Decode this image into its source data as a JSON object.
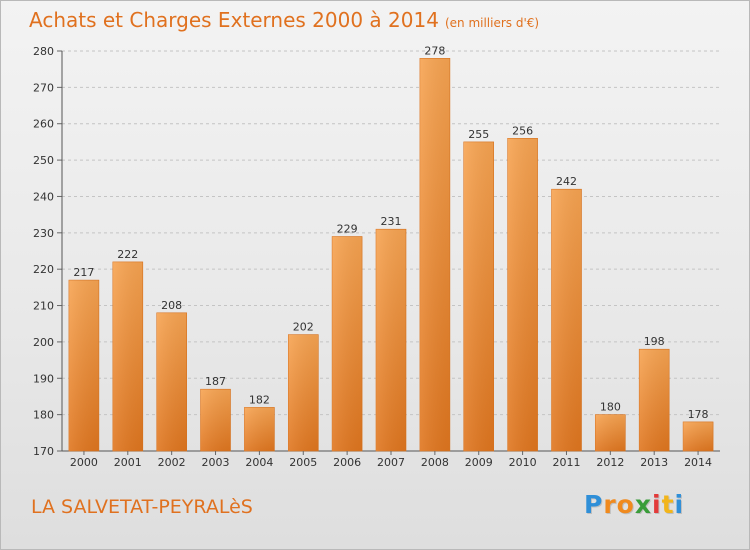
{
  "chart_data": {
    "type": "bar",
    "title": "Achats et Charges Externes 2000 à 2014",
    "subtitle": "(en milliers d'€)",
    "xlabel": "",
    "ylabel": "",
    "categories": [
      "2000",
      "2001",
      "2002",
      "2003",
      "2004",
      "2005",
      "2006",
      "2007",
      "2008",
      "2009",
      "2010",
      "2011",
      "2012",
      "2013",
      "2014"
    ],
    "values": [
      217,
      222,
      208,
      187,
      182,
      202,
      229,
      231,
      278,
      255,
      256,
      242,
      180,
      198,
      178
    ],
    "ylim": [
      170,
      280
    ],
    "yticks": [
      170,
      180,
      190,
      200,
      210,
      220,
      230,
      240,
      250,
      260,
      270,
      280
    ],
    "grid": true,
    "legend": "none",
    "bar_color": "#f0923a"
  },
  "footer": {
    "place": "LA SALVETAT-PEYRALèS"
  },
  "logo": {
    "letters": [
      "P",
      "r",
      "o",
      "x",
      "i",
      "t",
      "i"
    ],
    "colors": [
      "#2f8fd8",
      "#f08a1e",
      "#f08a1e",
      "#3a9d3a",
      "#e23a3a",
      "#f2b51b",
      "#2f8fd8"
    ]
  }
}
